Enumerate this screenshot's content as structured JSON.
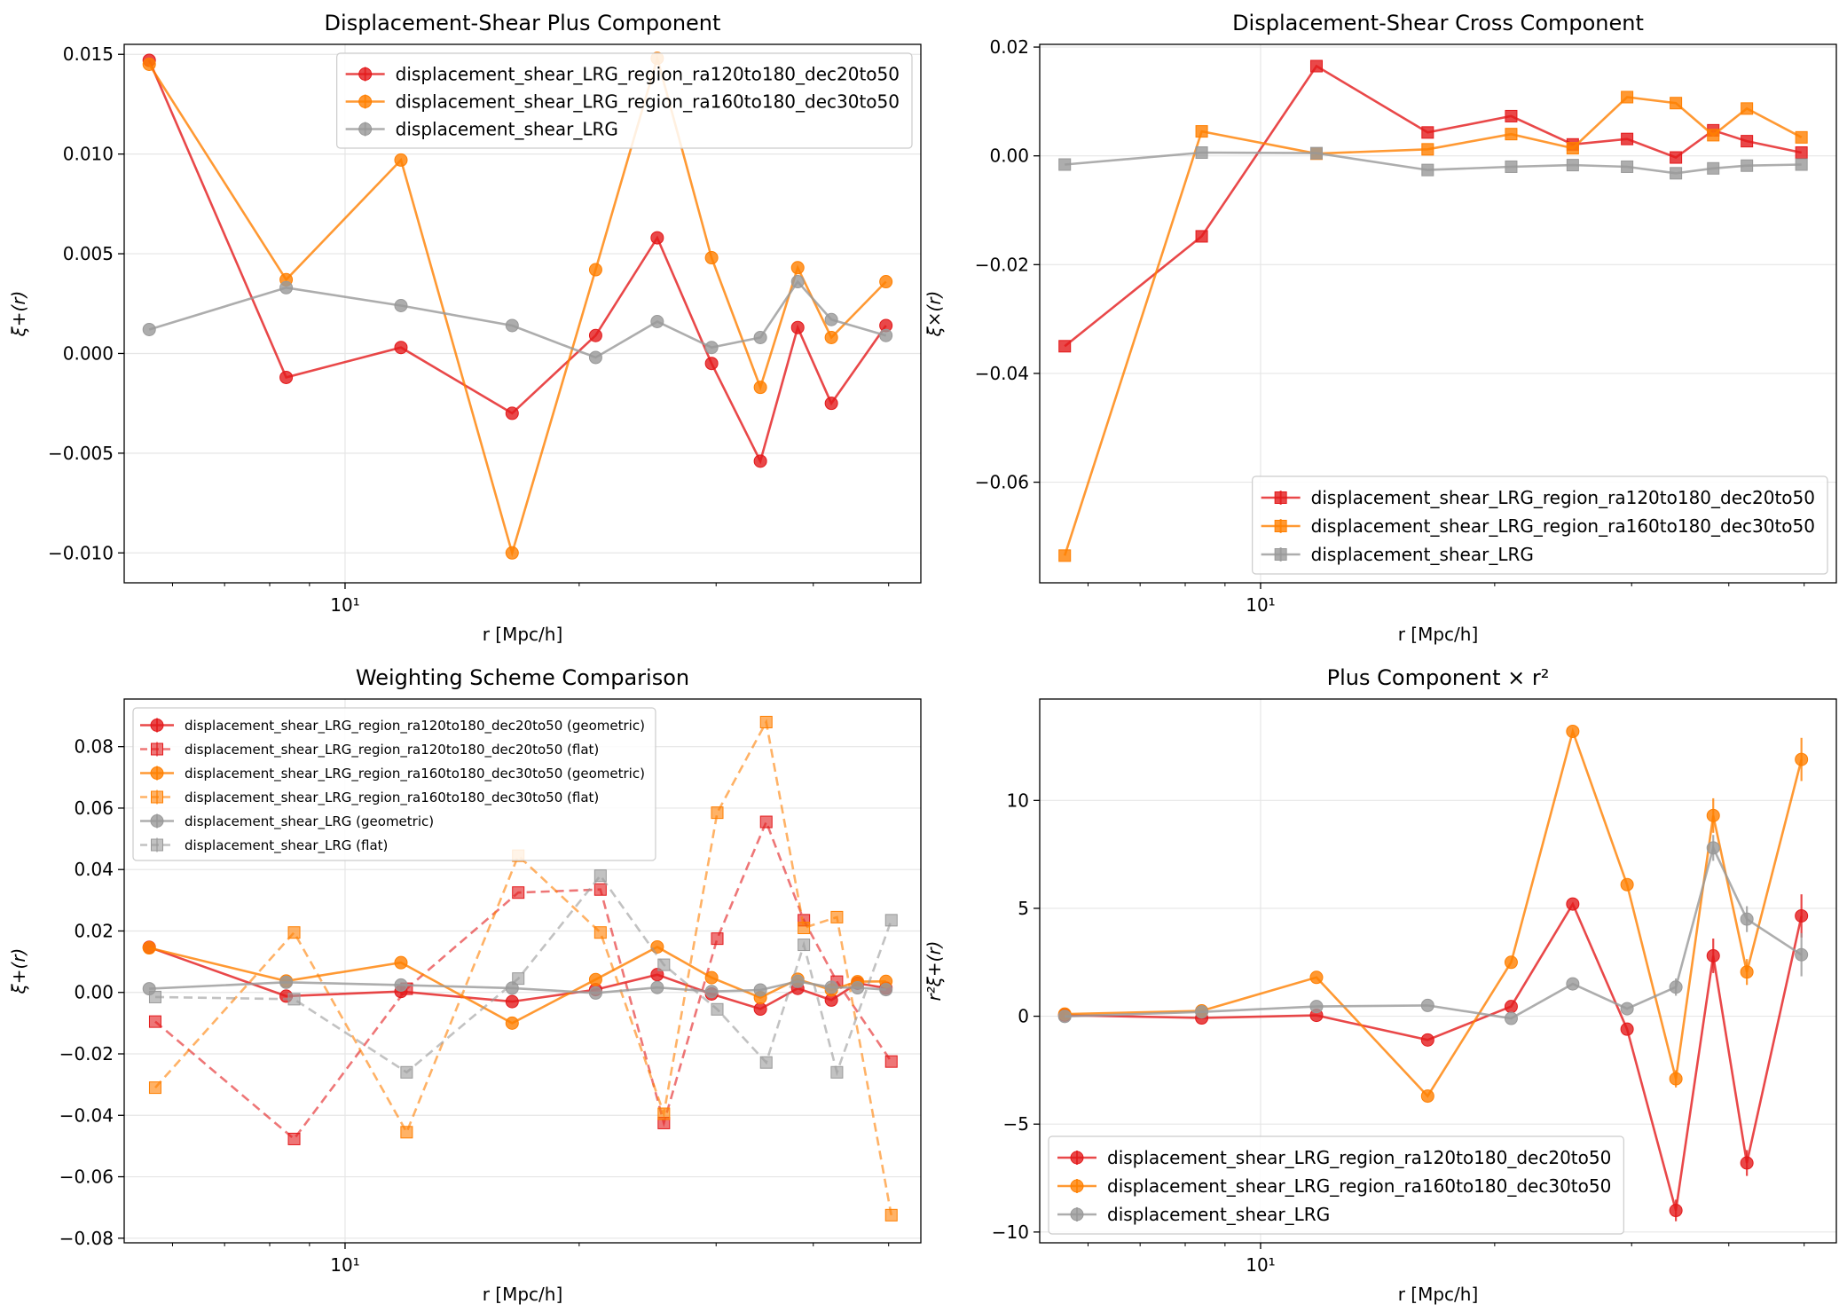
{
  "colors": {
    "ra120": "#e31a1c",
    "ra160": "#ff7f00",
    "full": "#999999",
    "grid": "#e6e6e6"
  },
  "chart_data": [
    {
      "id": "plus",
      "type": "line",
      "title": "Displacement-Shear Plus Component",
      "xlabel": "r [Mpc/h]",
      "ylabel": "ξ+(r)",
      "x_scale": "log",
      "xlim": [
        5.2,
        55
      ],
      "ylim": [
        -0.0115,
        0.0155
      ],
      "x_ticks": [
        {
          "value": 10,
          "label": "10¹"
        }
      ],
      "y_ticks": [
        {
          "value": -0.01,
          "label": "−0.010"
        },
        {
          "value": -0.005,
          "label": "−0.005"
        },
        {
          "value": 0.0,
          "label": "0.000"
        },
        {
          "value": 0.005,
          "label": "0.005"
        },
        {
          "value": 0.01,
          "label": "0.010"
        },
        {
          "value": 0.015,
          "label": "0.015"
        }
      ],
      "grid": true,
      "legend": "top-right",
      "series": [
        {
          "name": "displacement_shear_LRG_region_ra120to180_dec20to50",
          "color_key": "ra120",
          "marker": "circle",
          "dash": false,
          "x": [
            5.6,
            8.4,
            11.8,
            16.4,
            21.0,
            25.2,
            29.6,
            34.2,
            38.2,
            42.2,
            45.6,
            49.6
          ],
          "y": [
            0.0147,
            -0.0012,
            0.0003,
            -0.003,
            0.0009,
            0.0058,
            -0.0005,
            -0.0054,
            0.0013,
            -0.0025,
            null,
            0.0014
          ]
        },
        {
          "name": "displacement_shear_LRG_region_ra160to180_dec30to50",
          "color_key": "ra160",
          "marker": "circle",
          "dash": false,
          "x": [
            5.6,
            8.4,
            11.8,
            16.4,
            21.0,
            25.2,
            29.6,
            34.2,
            38.2,
            42.2,
            45.6,
            49.6
          ],
          "y": [
            0.0145,
            0.0037,
            0.0097,
            -0.01,
            0.0042,
            0.0148,
            0.0048,
            -0.0017,
            0.0043,
            0.0008,
            null,
            0.0036
          ]
        },
        {
          "name": "displacement_shear_LRG",
          "color_key": "full",
          "marker": "circle",
          "dash": false,
          "x": [
            5.6,
            8.4,
            11.8,
            16.4,
            21.0,
            25.2,
            29.6,
            34.2,
            38.2,
            42.2,
            45.6,
            49.6
          ],
          "y": [
            0.0012,
            0.0033,
            0.0024,
            0.0014,
            -0.0002,
            0.0016,
            0.0003,
            0.0008,
            0.0036,
            0.0017,
            null,
            0.0009
          ]
        }
      ]
    },
    {
      "id": "cross",
      "type": "line",
      "title": "Displacement-Shear Cross Component",
      "xlabel": "r [Mpc/h]",
      "ylabel": "ξ×(r)",
      "x_scale": "log",
      "xlim": [
        5.2,
        55
      ],
      "ylim": [
        -0.0785,
        0.0205
      ],
      "x_ticks": [
        {
          "value": 10,
          "label": "10¹"
        }
      ],
      "y_ticks": [
        {
          "value": -0.06,
          "label": "−0.06"
        },
        {
          "value": -0.04,
          "label": "−0.04"
        },
        {
          "value": -0.02,
          "label": "−0.02"
        },
        {
          "value": 0.0,
          "label": "0.00"
        },
        {
          "value": 0.02,
          "label": "0.02"
        }
      ],
      "grid": true,
      "legend": "bottom-right",
      "series": [
        {
          "name": "displacement_shear_LRG_region_ra120to180_dec20to50",
          "color_key": "ra120",
          "marker": "square",
          "dash": false,
          "x": [
            5.6,
            8.4,
            11.8,
            16.4,
            21.0,
            25.2,
            29.6,
            34.2,
            38.2,
            42.2,
            45.6,
            49.6
          ],
          "y": [
            -0.035,
            -0.0148,
            0.0165,
            0.0043,
            0.0073,
            0.0021,
            0.0031,
            -0.0003,
            0.0047,
            0.0027,
            null,
            0.0006
          ]
        },
        {
          "name": "displacement_shear_LRG_region_ra160to180_dec30to50",
          "color_key": "ra160",
          "marker": "square",
          "dash": false,
          "x": [
            5.6,
            8.4,
            11.8,
            16.4,
            21.0,
            25.2,
            29.6,
            34.2,
            38.2,
            42.2,
            45.6,
            49.6
          ],
          "y": [
            -0.0735,
            0.0045,
            0.0004,
            0.0012,
            0.004,
            0.0014,
            0.0108,
            0.0097,
            0.0038,
            0.0087,
            null,
            0.0034
          ]
        },
        {
          "name": "displacement_shear_LRG",
          "color_key": "full",
          "marker": "square",
          "dash": false,
          "x": [
            5.6,
            8.4,
            11.8,
            16.4,
            21.0,
            25.2,
            29.6,
            34.2,
            38.2,
            42.2,
            45.6,
            49.6
          ],
          "y": [
            -0.0016,
            0.0006,
            0.0005,
            -0.0026,
            -0.002,
            -0.0017,
            -0.002,
            -0.0032,
            -0.0023,
            -0.0018,
            null,
            -0.0016
          ]
        }
      ]
    },
    {
      "id": "weighting",
      "type": "line",
      "title": "Weighting Scheme Comparison",
      "xlabel": "r [Mpc/h]",
      "ylabel": "ξ+(r)",
      "x_scale": "log",
      "xlim": [
        5.2,
        55
      ],
      "ylim": [
        -0.0815,
        0.0955
      ],
      "x_ticks": [
        {
          "value": 10,
          "label": "10¹"
        }
      ],
      "y_ticks": [
        {
          "value": -0.08,
          "label": "−0.08"
        },
        {
          "value": -0.06,
          "label": "−0.06"
        },
        {
          "value": -0.04,
          "label": "−0.04"
        },
        {
          "value": -0.02,
          "label": "−0.02"
        },
        {
          "value": 0.0,
          "label": "0.00"
        },
        {
          "value": 0.02,
          "label": "0.02"
        },
        {
          "value": 0.04,
          "label": "0.04"
        },
        {
          "value": 0.06,
          "label": "0.06"
        },
        {
          "value": 0.08,
          "label": "0.08"
        }
      ],
      "grid": true,
      "legend": "top-left",
      "series": [
        {
          "name": "displacement_shear_LRG_region_ra120to180_dec20to50 (geometric)",
          "color_key": "ra120",
          "marker": "circle",
          "dash": false,
          "x": [
            5.6,
            8.4,
            11.8,
            16.4,
            21.0,
            25.2,
            29.6,
            34.2,
            38.2,
            42.2,
            45.6,
            49.6
          ],
          "y": [
            0.0147,
            -0.0012,
            0.0003,
            -0.003,
            0.0009,
            0.0058,
            -0.0005,
            -0.0054,
            0.0013,
            -0.0025,
            0.003,
            0.0014
          ]
        },
        {
          "name": "displacement_shear_LRG_region_ra120to180_dec20to50 (flat)",
          "color_key": "ra120",
          "marker": "square",
          "dash": true,
          "x": [
            5.7,
            8.6,
            12.0,
            16.7,
            21.3,
            25.7,
            30.1,
            34.8,
            38.9,
            42.9,
            46.4,
            50.4
          ],
          "y": [
            -0.0095,
            -0.0477,
            0.0012,
            0.0325,
            0.0335,
            -0.0425,
            0.0175,
            0.0555,
            0.0235,
            0.0035,
            null,
            -0.0225
          ]
        },
        {
          "name": "displacement_shear_LRG_region_ra160to180_dec30to50 (geometric)",
          "color_key": "ra160",
          "marker": "circle",
          "dash": false,
          "x": [
            5.6,
            8.4,
            11.8,
            16.4,
            21.0,
            25.2,
            29.6,
            34.2,
            38.2,
            42.2,
            45.6,
            49.6
          ],
          "y": [
            0.0145,
            0.0037,
            0.0097,
            -0.01,
            0.0042,
            0.0148,
            0.0048,
            -0.0017,
            0.0043,
            0.0008,
            0.0035,
            0.0036
          ]
        },
        {
          "name": "displacement_shear_LRG_region_ra160to180_dec30to50 (flat)",
          "color_key": "ra160",
          "marker": "square",
          "dash": true,
          "x": [
            5.7,
            8.6,
            12.0,
            16.7,
            21.3,
            25.7,
            30.1,
            34.8,
            38.9,
            42.9,
            46.4,
            50.4
          ],
          "y": [
            -0.031,
            0.0195,
            -0.0455,
            0.0445,
            0.0195,
            -0.0395,
            0.0585,
            0.088,
            0.021,
            0.0245,
            null,
            -0.0725
          ]
        },
        {
          "name": "displacement_shear_LRG (geometric)",
          "color_key": "full",
          "marker": "circle",
          "dash": false,
          "x": [
            5.6,
            8.4,
            11.8,
            16.4,
            21.0,
            25.2,
            29.6,
            34.2,
            38.2,
            42.2,
            45.6,
            49.6
          ],
          "y": [
            0.0012,
            0.0033,
            0.0024,
            0.0014,
            -0.0002,
            0.0016,
            0.0003,
            0.0008,
            0.0036,
            0.0017,
            0.0015,
            0.0009
          ]
        },
        {
          "name": "displacement_shear_LRG (flat)",
          "color_key": "full",
          "marker": "square",
          "dash": true,
          "x": [
            5.7,
            8.6,
            12.0,
            16.7,
            21.3,
            25.7,
            30.1,
            34.8,
            38.9,
            42.9,
            46.4,
            50.4
          ],
          "y": [
            -0.0015,
            -0.0022,
            -0.026,
            0.0045,
            0.038,
            0.009,
            -0.0055,
            -0.0228,
            0.0155,
            -0.026,
            null,
            0.0235
          ]
        }
      ]
    },
    {
      "id": "r2",
      "type": "line",
      "title": "Plus Component × r²",
      "xlabel": "r [Mpc/h]",
      "ylabel": "r²ξ+(r)",
      "x_scale": "log",
      "xlim": [
        5.2,
        55
      ],
      "ylim": [
        -10.5,
        14.7
      ],
      "x_ticks": [
        {
          "value": 10,
          "label": "10¹"
        }
      ],
      "y_ticks": [
        {
          "value": -10,
          "label": "−10"
        },
        {
          "value": -5,
          "label": "−5"
        },
        {
          "value": 0,
          "label": "0"
        },
        {
          "value": 5,
          "label": "5"
        },
        {
          "value": 10,
          "label": "10"
        }
      ],
      "grid": true,
      "legend": "bottom-left",
      "series": [
        {
          "name": "displacement_shear_LRG_region_ra120to180_dec20to50",
          "color_key": "ra120",
          "marker": "circle",
          "dash": false,
          "x": [
            5.6,
            8.4,
            11.8,
            16.4,
            21.0,
            25.2,
            29.6,
            34.2,
            38.2,
            42.2,
            45.6,
            49.6
          ],
          "y": [
            0.05,
            -0.08,
            0.04,
            -1.1,
            0.45,
            5.2,
            -0.6,
            -9.0,
            2.8,
            -6.8,
            null,
            4.65
          ],
          "err": [
            0,
            0,
            0,
            0,
            0,
            0,
            0,
            0.5,
            0.8,
            0.6,
            null,
            1.0
          ]
        },
        {
          "name": "displacement_shear_LRG_region_ra160to180_dec30to50",
          "color_key": "ra160",
          "marker": "circle",
          "dash": false,
          "x": [
            5.6,
            8.4,
            11.8,
            16.4,
            21.0,
            25.2,
            29.6,
            34.2,
            38.2,
            42.2,
            45.6,
            49.6
          ],
          "y": [
            0.1,
            0.25,
            1.8,
            -3.7,
            2.5,
            13.2,
            6.1,
            -2.9,
            9.3,
            2.05,
            null,
            11.9
          ],
          "err": [
            0,
            0,
            0,
            0,
            0,
            0,
            0,
            0.4,
            0.8,
            0.6,
            null,
            1.0
          ]
        },
        {
          "name": "displacement_shear_LRG",
          "color_key": "full",
          "marker": "circle",
          "dash": false,
          "x": [
            5.6,
            8.4,
            11.8,
            16.4,
            21.0,
            25.2,
            29.6,
            34.2,
            38.2,
            42.2,
            45.6,
            49.6
          ],
          "y": [
            -0.01,
            0.2,
            0.45,
            0.5,
            -0.1,
            1.5,
            0.35,
            1.35,
            7.8,
            4.5,
            null,
            2.85
          ],
          "err": [
            0,
            0,
            0,
            0,
            0,
            0,
            0,
            0.4,
            0.6,
            0.6,
            null,
            1.0
          ]
        }
      ]
    }
  ]
}
